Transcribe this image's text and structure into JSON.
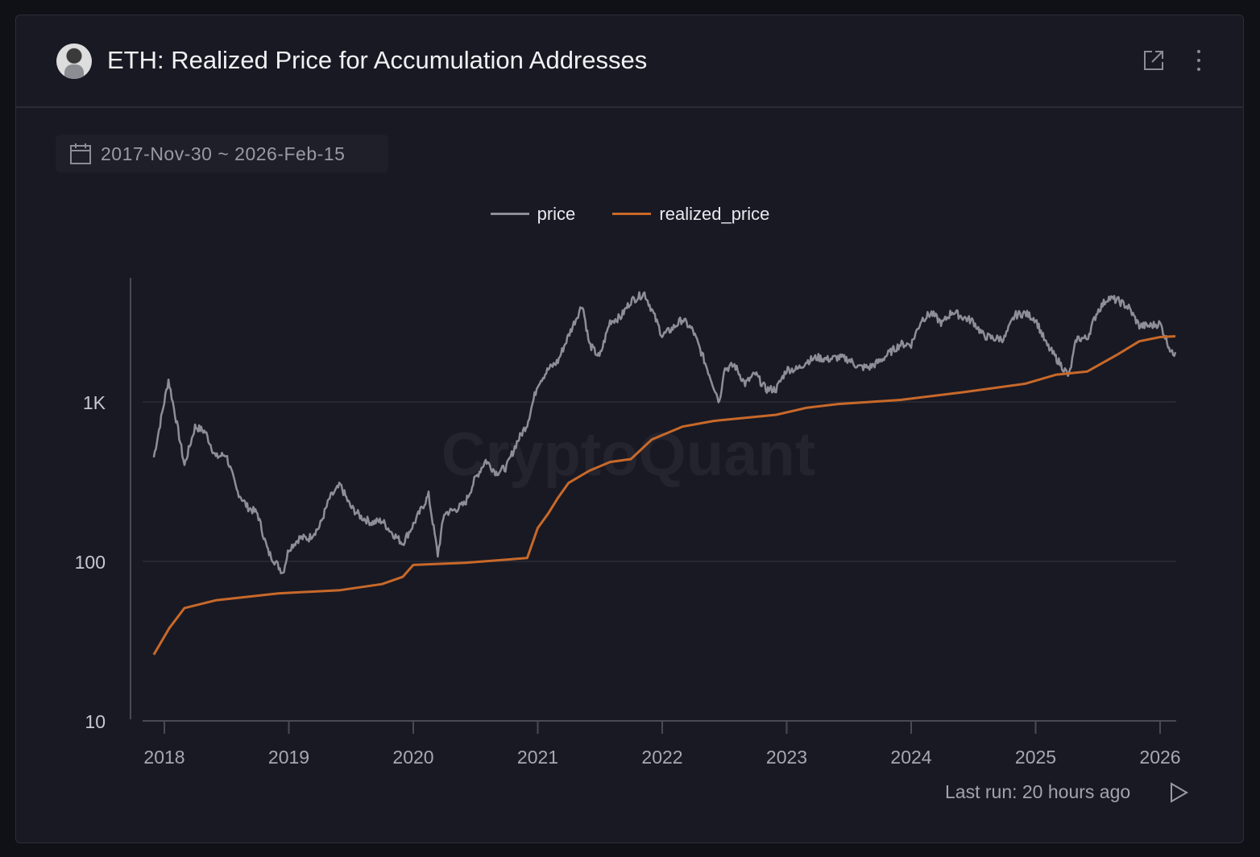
{
  "header": {
    "title": "ETH: Realized Price for Accumulation Addresses",
    "icons": [
      "avatar",
      "external-link-icon",
      "more-vertical-icon"
    ]
  },
  "date_range": {
    "label": "2017-Nov-30 ~ 2026-Feb-15",
    "icon": "calendar-icon"
  },
  "watermark": "CryptoQuant",
  "footer": {
    "last_run": "Last run: 20 hours ago",
    "icon": "play-icon"
  },
  "chart_data": {
    "type": "line",
    "title": "",
    "xlabel": "",
    "ylabel": "",
    "yscale": "log",
    "ylim": [
      10,
      6000
    ],
    "xlim": [
      "2017-11-30",
      "2026-02-15"
    ],
    "y_ticks": [
      {
        "v": 10,
        "label": "10"
      },
      {
        "v": 100,
        "label": "100"
      },
      {
        "v": 1000,
        "label": "1K"
      }
    ],
    "x_ticks": [
      "2018",
      "2019",
      "2020",
      "2021",
      "2022",
      "2023",
      "2024",
      "2025",
      "2026"
    ],
    "grid": "horizontal",
    "legend": "top-center",
    "series": [
      {
        "name": "price",
        "color": "#8e8e99",
        "points": [
          [
            "2017-12-01",
            450
          ],
          [
            "2018-01-13",
            1380
          ],
          [
            "2018-02-01",
            850
          ],
          [
            "2018-03-01",
            400
          ],
          [
            "2018-04-01",
            700
          ],
          [
            "2018-05-01",
            650
          ],
          [
            "2018-06-01",
            450
          ],
          [
            "2018-07-01",
            470
          ],
          [
            "2018-08-01",
            280
          ],
          [
            "2018-09-01",
            220
          ],
          [
            "2018-10-01",
            200
          ],
          [
            "2018-11-01",
            115
          ],
          [
            "2018-12-15",
            85
          ],
          [
            "2019-01-01",
            120
          ],
          [
            "2019-02-01",
            140
          ],
          [
            "2019-03-01",
            140
          ],
          [
            "2019-04-01",
            165
          ],
          [
            "2019-05-01",
            250
          ],
          [
            "2019-06-01",
            300
          ],
          [
            "2019-07-01",
            220
          ],
          [
            "2019-08-01",
            190
          ],
          [
            "2019-09-01",
            175
          ],
          [
            "2019-10-01",
            180
          ],
          [
            "2019-11-01",
            150
          ],
          [
            "2019-12-01",
            130
          ],
          [
            "2020-01-01",
            170
          ],
          [
            "2020-02-15",
            260
          ],
          [
            "2020-03-13",
            110
          ],
          [
            "2020-04-01",
            200
          ],
          [
            "2020-05-01",
            210
          ],
          [
            "2020-06-01",
            230
          ],
          [
            "2020-07-01",
            330
          ],
          [
            "2020-08-01",
            430
          ],
          [
            "2020-09-01",
            360
          ],
          [
            "2020-10-01",
            390
          ],
          [
            "2020-11-01",
            560
          ],
          [
            "2020-12-01",
            730
          ],
          [
            "2021-01-01",
            1300
          ],
          [
            "2021-02-01",
            1600
          ],
          [
            "2021-03-01",
            1800
          ],
          [
            "2021-04-01",
            2600
          ],
          [
            "2021-05-12",
            4100
          ],
          [
            "2021-06-01",
            2300
          ],
          [
            "2021-07-01",
            1900
          ],
          [
            "2021-08-01",
            3200
          ],
          [
            "2021-09-01",
            3400
          ],
          [
            "2021-10-01",
            4300
          ],
          [
            "2021-11-10",
            4800
          ],
          [
            "2021-12-01",
            3800
          ],
          [
            "2022-01-01",
            2600
          ],
          [
            "2022-02-01",
            2900
          ],
          [
            "2022-03-01",
            3300
          ],
          [
            "2022-04-01",
            2800
          ],
          [
            "2022-05-01",
            1900
          ],
          [
            "2022-06-18",
            1000
          ],
          [
            "2022-07-01",
            1600
          ],
          [
            "2022-08-01",
            1700
          ],
          [
            "2022-09-01",
            1300
          ],
          [
            "2022-10-01",
            1500
          ],
          [
            "2022-11-01",
            1200
          ],
          [
            "2022-12-01",
            1200
          ],
          [
            "2023-01-01",
            1600
          ],
          [
            "2023-02-01",
            1600
          ],
          [
            "2023-03-01",
            1800
          ],
          [
            "2023-04-01",
            1900
          ],
          [
            "2023-05-01",
            1850
          ],
          [
            "2023-06-01",
            1900
          ],
          [
            "2023-07-01",
            1850
          ],
          [
            "2023-08-01",
            1650
          ],
          [
            "2023-09-01",
            1650
          ],
          [
            "2023-10-01",
            1800
          ],
          [
            "2023-11-01",
            2050
          ],
          [
            "2023-12-01",
            2300
          ],
          [
            "2024-01-01",
            2300
          ],
          [
            "2024-02-01",
            3300
          ],
          [
            "2024-03-01",
            3600
          ],
          [
            "2024-04-01",
            3100
          ],
          [
            "2024-05-01",
            3700
          ],
          [
            "2024-06-01",
            3400
          ],
          [
            "2024-07-01",
            3200
          ],
          [
            "2024-08-01",
            2600
          ],
          [
            "2024-09-01",
            2500
          ],
          [
            "2024-10-01",
            2500
          ],
          [
            "2024-11-01",
            3500
          ],
          [
            "2024-12-01",
            3600
          ],
          [
            "2025-01-01",
            3300
          ],
          [
            "2025-02-01",
            2300
          ],
          [
            "2025-03-01",
            1900
          ],
          [
            "2025-04-09",
            1450
          ],
          [
            "2025-05-01",
            2500
          ],
          [
            "2025-06-01",
            2500
          ],
          [
            "2025-07-01",
            3700
          ],
          [
            "2025-08-01",
            4500
          ],
          [
            "2025-09-01",
            4300
          ],
          [
            "2025-10-01",
            3900
          ],
          [
            "2025-11-01",
            3000
          ],
          [
            "2025-12-01",
            3000
          ],
          [
            "2026-01-01",
            3100
          ],
          [
            "2026-02-05",
            2000
          ],
          [
            "2026-02-15",
            2050
          ]
        ]
      },
      {
        "name": "realized_price",
        "color": "#c8692a",
        "points": [
          [
            "2017-12-01",
            26
          ],
          [
            "2018-01-15",
            38
          ],
          [
            "2018-03-01",
            51
          ],
          [
            "2018-06-01",
            57
          ],
          [
            "2018-12-01",
            63
          ],
          [
            "2019-06-01",
            66
          ],
          [
            "2019-10-01",
            72
          ],
          [
            "2019-12-01",
            80
          ],
          [
            "2020-01-01",
            95
          ],
          [
            "2020-06-01",
            98
          ],
          [
            "2020-12-01",
            105
          ],
          [
            "2021-01-01",
            162
          ],
          [
            "2021-02-01",
            200
          ],
          [
            "2021-03-01",
            250
          ],
          [
            "2021-04-01",
            310
          ],
          [
            "2021-06-01",
            370
          ],
          [
            "2021-08-01",
            420
          ],
          [
            "2021-10-01",
            438
          ],
          [
            "2021-12-01",
            580
          ],
          [
            "2022-03-01",
            700
          ],
          [
            "2022-06-01",
            760
          ],
          [
            "2022-12-01",
            830
          ],
          [
            "2023-03-01",
            920
          ],
          [
            "2023-06-01",
            970
          ],
          [
            "2023-12-01",
            1030
          ],
          [
            "2024-06-01",
            1150
          ],
          [
            "2024-12-01",
            1300
          ],
          [
            "2025-03-01",
            1480
          ],
          [
            "2025-06-01",
            1550
          ],
          [
            "2025-09-01",
            2000
          ],
          [
            "2025-11-01",
            2400
          ],
          [
            "2026-01-01",
            2550
          ],
          [
            "2026-02-15",
            2580
          ]
        ]
      }
    ]
  }
}
